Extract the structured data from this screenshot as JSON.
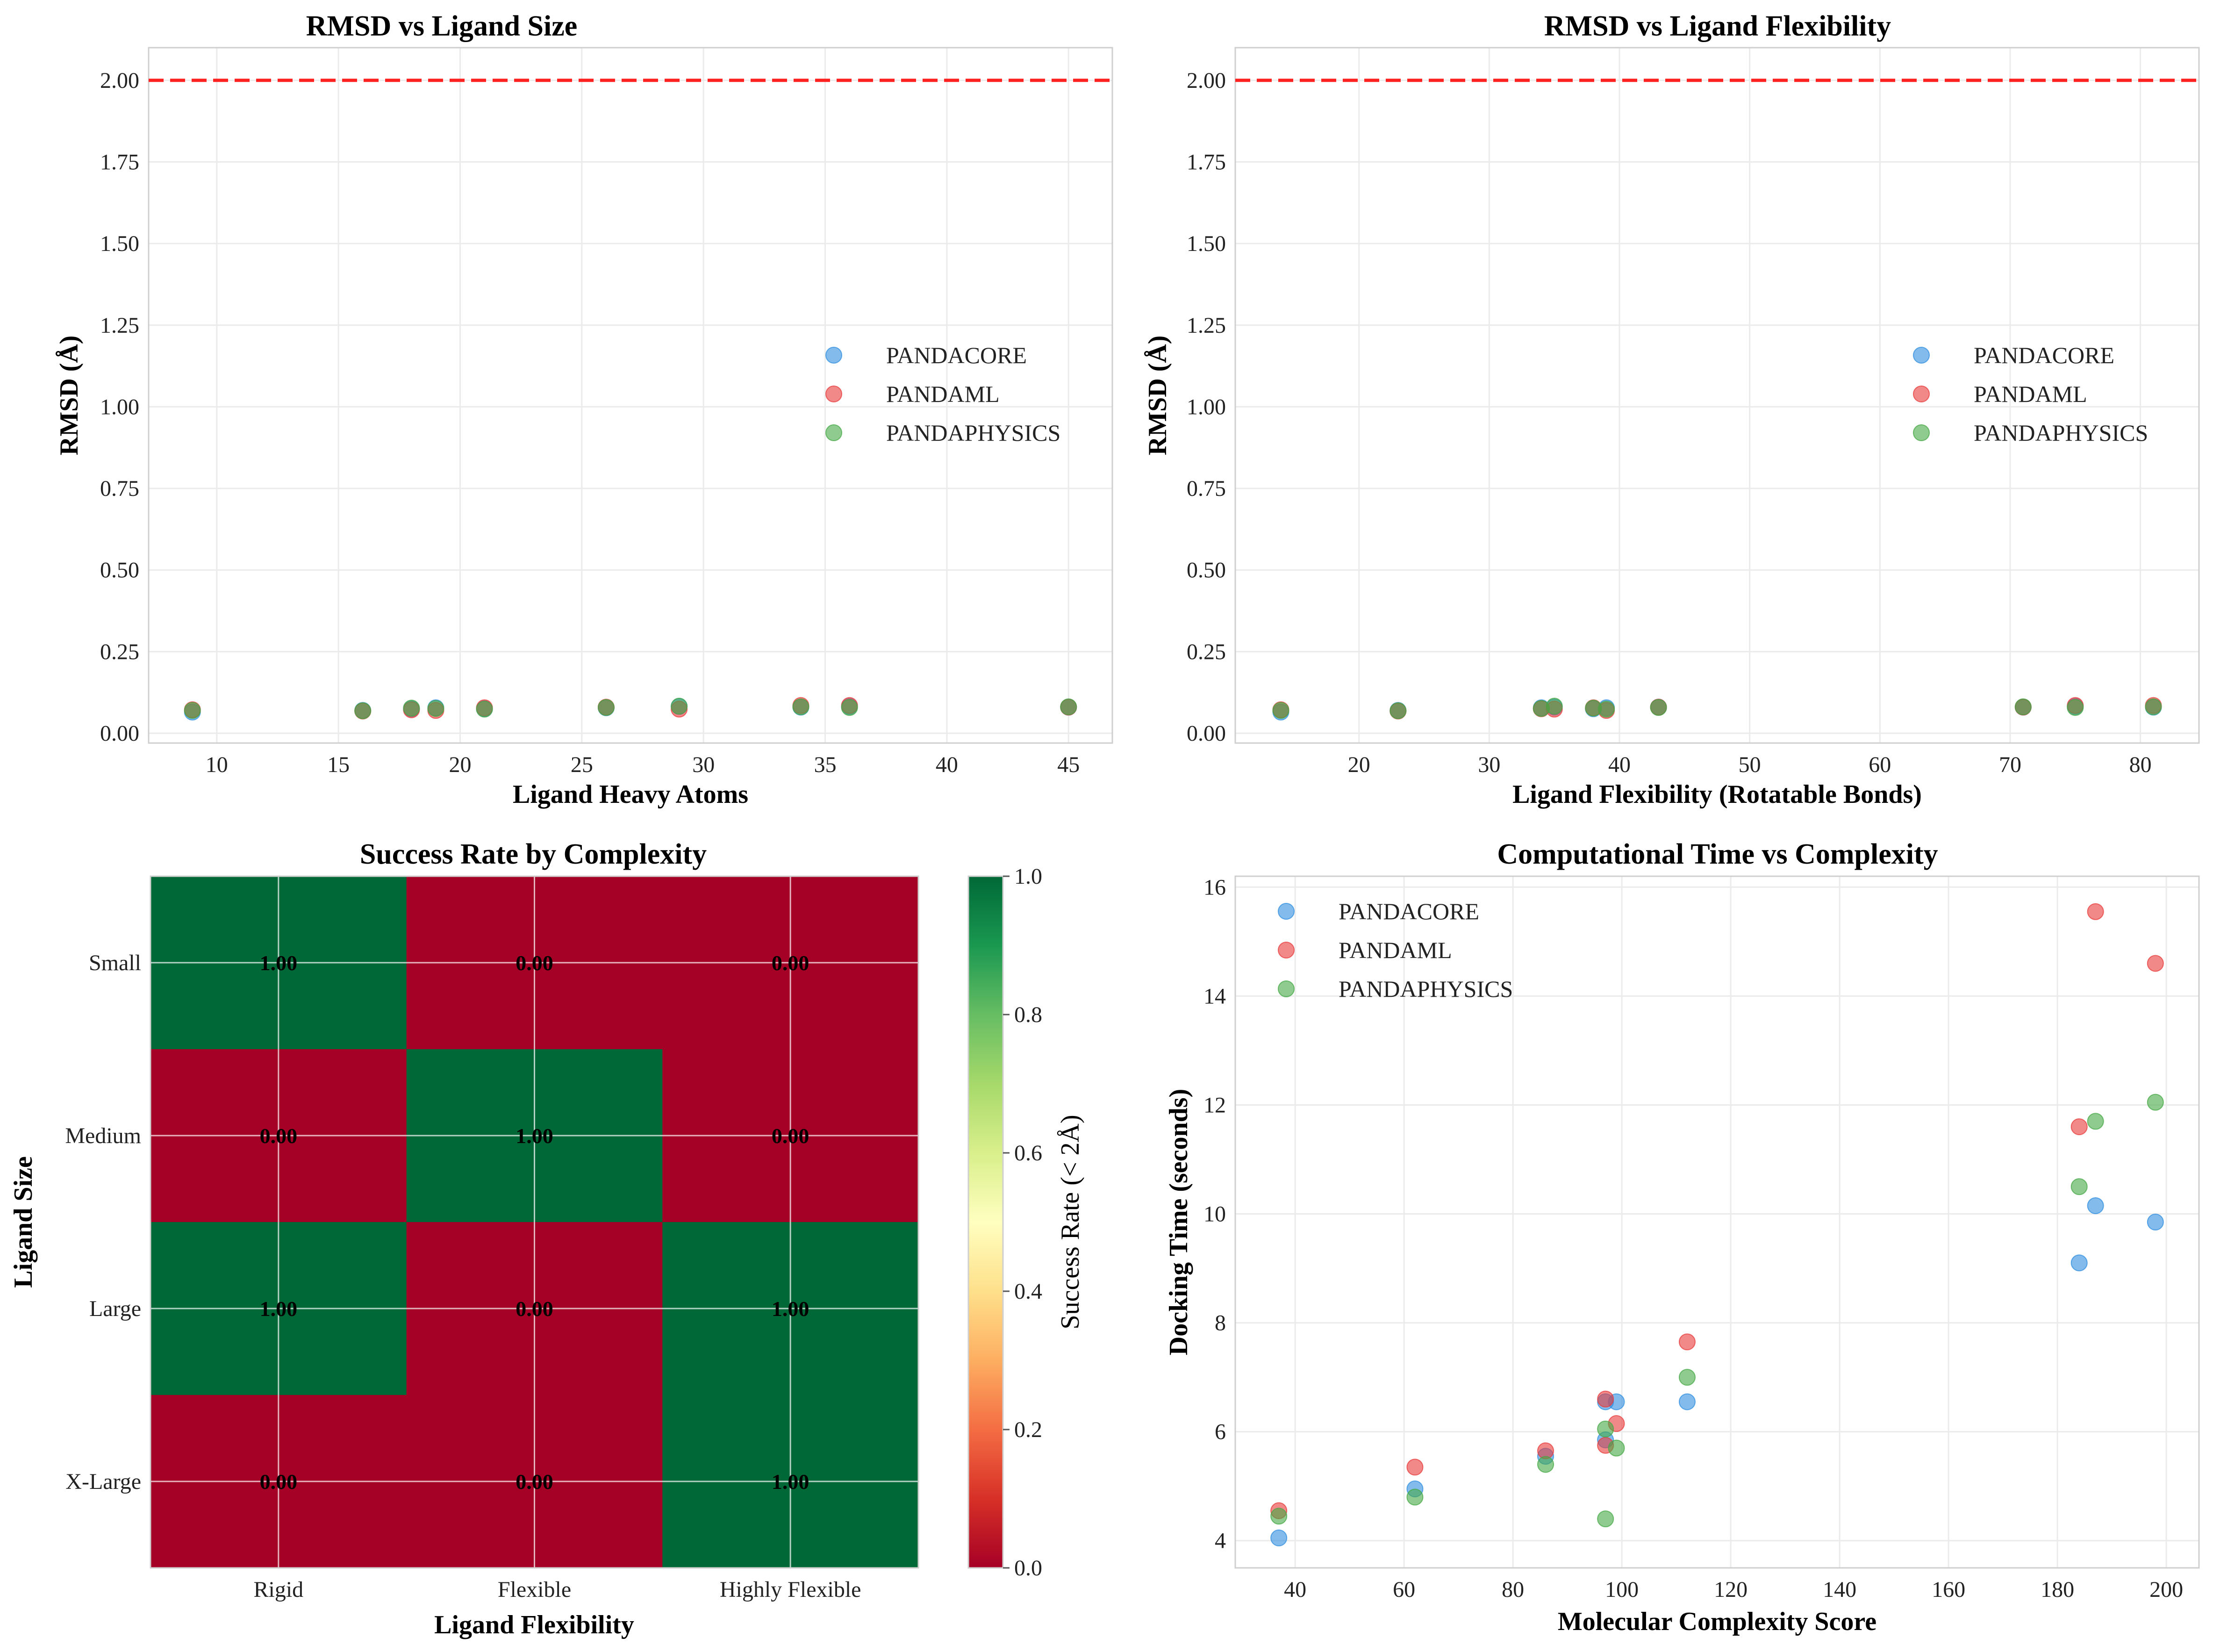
{
  "colors": {
    "PANDACORE": "#2e8ee0",
    "PANDAML": "#e83a3a",
    "PANDAPHYSICS": "#45a845",
    "threshold": "#ff2020",
    "success": "#006837",
    "failure": "#a50026"
  },
  "chart_data": [
    {
      "type": "scatter",
      "title": "RMSD vs Ligand Size",
      "xlabel": "Ligand Heavy Atoms",
      "ylabel": "RMSD (Å)",
      "xlim": [
        7.2,
        46.8
      ],
      "ylim": [
        -0.03,
        2.1
      ],
      "xticks": [
        10,
        15,
        20,
        25,
        30,
        35,
        40,
        45
      ],
      "yticks": [
        0.0,
        0.25,
        0.5,
        0.75,
        1.0,
        1.25,
        1.5,
        1.75,
        2.0
      ],
      "grid": true,
      "legend": "center-right",
      "hline": 2.0,
      "series": [
        {
          "name": "PANDACORE",
          "x": [
            9,
            16,
            18,
            19,
            21,
            26,
            29,
            34,
            36,
            45
          ],
          "y": [
            0.065,
            0.07,
            0.075,
            0.078,
            0.075,
            0.078,
            0.082,
            0.08,
            0.082,
            0.08
          ]
        },
        {
          "name": "PANDAML",
          "x": [
            9,
            16,
            18,
            19,
            21,
            26,
            29,
            34,
            36,
            45
          ],
          "y": [
            0.072,
            0.068,
            0.072,
            0.07,
            0.078,
            0.08,
            0.074,
            0.085,
            0.085,
            0.08
          ]
        },
        {
          "name": "PANDAPHYSICS",
          "x": [
            9,
            16,
            18,
            19,
            21,
            26,
            29,
            34,
            36,
            45
          ],
          "y": [
            0.07,
            0.069,
            0.077,
            0.076,
            0.074,
            0.079,
            0.083,
            0.081,
            0.079,
            0.081
          ]
        }
      ]
    },
    {
      "type": "scatter",
      "title": "RMSD vs Ligand Flexibility",
      "xlabel": "Ligand Flexibility (Rotatable Bonds)",
      "ylabel": "RMSD (Å)",
      "xlim": [
        10.5,
        84.5
      ],
      "ylim": [
        -0.03,
        2.1
      ],
      "xticks": [
        20,
        30,
        40,
        50,
        60,
        70,
        80
      ],
      "yticks": [
        0.0,
        0.25,
        0.5,
        0.75,
        1.0,
        1.25,
        1.5,
        1.75,
        2.0
      ],
      "grid": true,
      "legend": "center-right",
      "hline": 2.0,
      "series": [
        {
          "name": "PANDACORE",
          "x": [
            14,
            23,
            34,
            35,
            38,
            39,
            43,
            71,
            75,
            81
          ],
          "y": [
            0.065,
            0.07,
            0.078,
            0.08,
            0.075,
            0.078,
            0.08,
            0.08,
            0.082,
            0.08
          ]
        },
        {
          "name": "PANDAML",
          "x": [
            14,
            23,
            34,
            35,
            38,
            39,
            43,
            71,
            75,
            81
          ],
          "y": [
            0.072,
            0.068,
            0.075,
            0.074,
            0.078,
            0.07,
            0.08,
            0.08,
            0.085,
            0.085
          ]
        },
        {
          "name": "PANDAPHYSICS",
          "x": [
            14,
            23,
            34,
            35,
            38,
            39,
            43,
            71,
            75,
            81
          ],
          "y": [
            0.07,
            0.069,
            0.076,
            0.083,
            0.077,
            0.074,
            0.079,
            0.081,
            0.079,
            0.081
          ]
        }
      ]
    },
    {
      "type": "heatmap",
      "title": "Success Rate by Complexity",
      "xlabel": "Ligand Flexibility",
      "ylabel": "Ligand Size",
      "columns": [
        "Rigid",
        "Flexible",
        "Highly Flexible"
      ],
      "rows": [
        "Small",
        "Medium",
        "Large",
        "X-Large"
      ],
      "values": [
        [
          1.0,
          0.0,
          0.0
        ],
        [
          0.0,
          1.0,
          0.0
        ],
        [
          1.0,
          0.0,
          1.0
        ],
        [
          0.0,
          0.0,
          1.0
        ]
      ],
      "labels": [
        [
          "1.00",
          "0.00",
          "0.00"
        ],
        [
          "0.00",
          "1.00",
          "0.00"
        ],
        [
          "1.00",
          "0.00",
          "1.00"
        ],
        [
          "0.00",
          "0.00",
          "1.00"
        ]
      ],
      "colorbar": {
        "label": "Success Rate (< 2Å)",
        "range": [
          0.0,
          1.0
        ],
        "ticks": [
          "0.0",
          "0.2",
          "0.4",
          "0.6",
          "0.8",
          "1.0"
        ]
      }
    },
    {
      "type": "scatter",
      "title": "Computational Time vs Complexity",
      "xlabel": "Molecular Complexity Score",
      "ylabel": "Docking Time (seconds)",
      "xlim": [
        29,
        206
      ],
      "ylim": [
        3.5,
        16.2
      ],
      "xticks": [
        40,
        60,
        80,
        100,
        120,
        140,
        160,
        180,
        200
      ],
      "yticks": [
        4,
        6,
        8,
        10,
        12,
        14,
        16
      ],
      "grid": true,
      "legend": "top-left",
      "series": [
        {
          "name": "PANDACORE",
          "x": [
            37,
            62,
            86,
            97,
            97,
            99,
            112,
            184,
            187,
            198
          ],
          "y": [
            4.05,
            4.95,
            5.55,
            6.55,
            5.85,
            6.55,
            6.55,
            9.1,
            10.15,
            9.85
          ]
        },
        {
          "name": "PANDAML",
          "x": [
            37,
            62,
            86,
            97,
            97,
            99,
            112,
            184,
            187,
            198
          ],
          "y": [
            4.55,
            5.35,
            5.65,
            6.6,
            5.75,
            6.15,
            7.65,
            11.6,
            15.55,
            14.6
          ]
        },
        {
          "name": "PANDAPHYSICS",
          "x": [
            37,
            62,
            86,
            97,
            97,
            99,
            112,
            184,
            187,
            198
          ],
          "y": [
            4.45,
            4.8,
            5.4,
            6.05,
            4.4,
            5.7,
            7.0,
            10.5,
            11.7,
            12.05
          ]
        }
      ]
    }
  ]
}
